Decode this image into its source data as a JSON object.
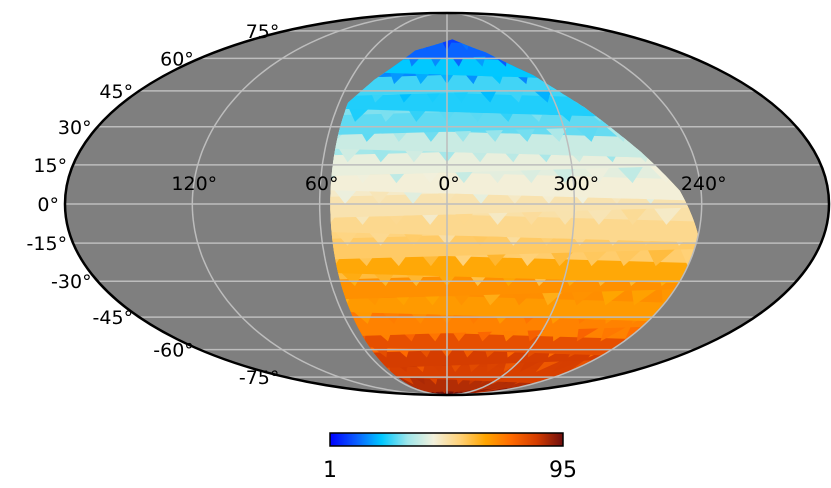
{
  "chart_data": {
    "type": "heatmap",
    "projection": "mollweide",
    "grid": true,
    "lat_labels": [
      "75°",
      "60°",
      "45°",
      "30°",
      "15°",
      "0°",
      "-15°",
      "-30°",
      "-45°",
      "-60°",
      "-75°"
    ],
    "lon_labels": [
      "120°",
      "60°",
      "0°",
      "300°",
      "240°"
    ],
    "background_color": "#7f7f7f",
    "grid_color": "#bdbdbd",
    "colormap": [
      "#0000ff",
      "#0a5cff",
      "#00c8ff",
      "#9fe6ea",
      "#f2f0dc",
      "#ffd27a",
      "#ffa500",
      "#ff6a00",
      "#d43c00",
      "#6e0e0e"
    ],
    "colorbar": {
      "min_label": "1",
      "max_label": "95",
      "min": 1,
      "max": 95
    },
    "coverage": {
      "lon_min_deg": -120,
      "lon_max_deg": 55,
      "north_edge": [
        [
          -120,
          -12
        ],
        [
          -110,
          5
        ],
        [
          -95,
          20
        ],
        [
          -75,
          38
        ],
        [
          -55,
          52
        ],
        [
          -30,
          63
        ],
        [
          -5,
          70
        ],
        [
          25,
          64
        ],
        [
          45,
          50
        ],
        [
          55,
          40
        ]
      ],
      "south_limit_deg": -90
    }
  }
}
